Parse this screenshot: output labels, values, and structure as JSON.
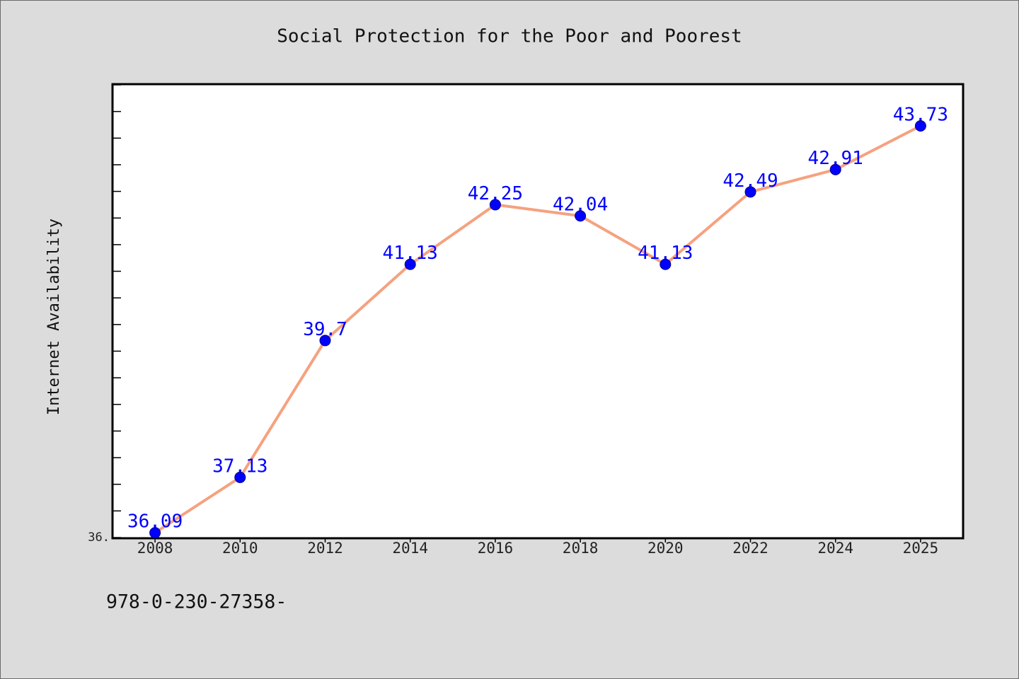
{
  "chart_data": {
    "type": "line",
    "title": "Social Protection for the Poor and Poorest",
    "ylabel": "Internet Availability",
    "categories": [
      "2008",
      "2010",
      "2012",
      "2014",
      "2016",
      "2018",
      "2020",
      "2022",
      "2024",
      "2025"
    ],
    "values": [
      36.09,
      37.13,
      39.7,
      41.13,
      42.25,
      42.04,
      41.13,
      42.49,
      42.91,
      43.73
    ],
    "data_labels": true,
    "ylim": [
      36,
      44.5
    ],
    "yticks": [
      {
        "value": 36,
        "label": "36."
      }
    ],
    "grid": false,
    "legend": false,
    "colors": {
      "background": "#dcdcdc",
      "plot_background": "#ffffff",
      "line": "#f5a27f",
      "marker": "#0000ff",
      "marker_edge": "#00008b",
      "data_label": "#0000ff"
    }
  },
  "footer_text": "978-0-230-27358-"
}
